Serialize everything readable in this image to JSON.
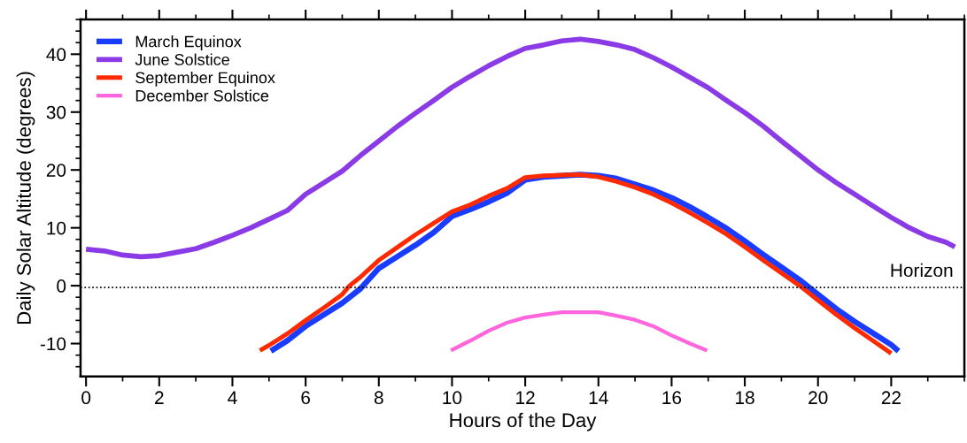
{
  "chart_data": {
    "type": "line",
    "xlabel": "Hours of the Day",
    "ylabel": "Daily Solar Altitude (degrees)",
    "xlim": [
      -0.15,
      24
    ],
    "ylim": [
      -15.7,
      46
    ],
    "xticks": [
      0,
      2,
      4,
      6,
      8,
      10,
      12,
      14,
      16,
      18,
      20,
      22
    ],
    "yticks": [
      -10,
      0,
      10,
      20,
      30,
      40
    ],
    "grid": false,
    "legend": "top left",
    "marker": "none",
    "line_style": "solid",
    "ref_lines": [
      {
        "axis": "y",
        "value": -0.3,
        "label": "Horizon",
        "color": "#000000",
        "line_style": "dotted"
      }
    ],
    "series": [
      {
        "name": "March Equinox",
        "color": "#1a3cff",
        "x": [
          5.05,
          5.5,
          6,
          6.5,
          7,
          7.5,
          8,
          8.5,
          9,
          9.5,
          10,
          10.5,
          11,
          11.5,
          12,
          12.5,
          13,
          13.5,
          14,
          14.5,
          15,
          15.5,
          16,
          16.5,
          17,
          17.5,
          18,
          18.5,
          19,
          19.5,
          20,
          20.5,
          21,
          21.5,
          22,
          22.2
        ],
        "values": [
          -11.3,
          -9.5,
          -7,
          -5,
          -3,
          -0.5,
          3,
          5,
          7,
          9.2,
          12,
          13.2,
          14.5,
          16,
          18.3,
          18.8,
          19,
          19.2,
          19,
          18.5,
          17.5,
          16.5,
          15.2,
          13.6,
          11.8,
          9.9,
          7.7,
          5.4,
          3.2,
          1,
          -1.5,
          -4,
          -6.2,
          -8.2,
          -10.2,
          -11.3
        ]
      },
      {
        "name": "June Solstice",
        "color": "#8a3be6",
        "x": [
          0,
          0.5,
          1,
          1.5,
          2,
          2.5,
          3,
          3.5,
          4,
          4.5,
          5,
          5.5,
          6,
          6.5,
          7,
          7.5,
          8,
          8.5,
          9,
          9.5,
          10,
          10.5,
          11,
          11.5,
          12,
          12.5,
          13,
          13.5,
          14,
          14.5,
          15,
          15.5,
          16,
          16.5,
          17,
          17.5,
          18,
          18.5,
          19,
          19.5,
          20,
          20.5,
          21,
          21.5,
          22,
          22.5,
          23,
          23.5,
          23.74
        ],
        "values": [
          6.3,
          6,
          5.3,
          5,
          5.2,
          5.8,
          6.4,
          7.5,
          8.7,
          10,
          11.5,
          13,
          15.8,
          17.8,
          19.8,
          22.5,
          25,
          27.5,
          29.8,
          32,
          34.3,
          36.2,
          38,
          39.6,
          41,
          41.6,
          42.3,
          42.6,
          42.2,
          41.6,
          40.8,
          39.4,
          37.8,
          36,
          34.2,
          32,
          29.9,
          27.6,
          25,
          22.5,
          20,
          17.8,
          15.8,
          13.8,
          11.8,
          10,
          8.5,
          7.5,
          6.7
        ]
      },
      {
        "name": "September Equinox",
        "color": "#ff2a00",
        "x": [
          4.75,
          5,
          5.5,
          6,
          6.5,
          7,
          7.2,
          7.5,
          8,
          8.5,
          9,
          9.5,
          10,
          10.5,
          11,
          11.5,
          12,
          12.5,
          13,
          13.5,
          14,
          14.5,
          15,
          15.5,
          16,
          16.5,
          17,
          17.5,
          18,
          18.5,
          19,
          19.5,
          20,
          20.5,
          21,
          21.5,
          22
        ],
        "values": [
          -11.2,
          -10.3,
          -8.3,
          -6,
          -3.8,
          -1.5,
          0,
          1.5,
          4.4,
          6.6,
          8.8,
          10.8,
          12.8,
          14,
          15.5,
          16.8,
          18.7,
          19,
          19.1,
          19.2,
          18.8,
          18,
          17,
          15.8,
          14.3,
          12.6,
          10.8,
          8.9,
          6.7,
          4.4,
          2.2,
          0,
          -2.5,
          -5,
          -7.3,
          -9.5,
          -11.7
        ]
      },
      {
        "name": "December Solstice",
        "color": "#ff66dd",
        "x": [
          9.97,
          10.5,
          11,
          11.5,
          12,
          12.5,
          13,
          13.5,
          14,
          14.5,
          15,
          15.5,
          16,
          16.5,
          16.97
        ],
        "values": [
          -11.2,
          -9.5,
          -7.8,
          -6.4,
          -5.5,
          -5,
          -4.6,
          -4.6,
          -4.6,
          -5.2,
          -5.9,
          -7,
          -8.6,
          -10,
          -11.2
        ]
      }
    ]
  }
}
